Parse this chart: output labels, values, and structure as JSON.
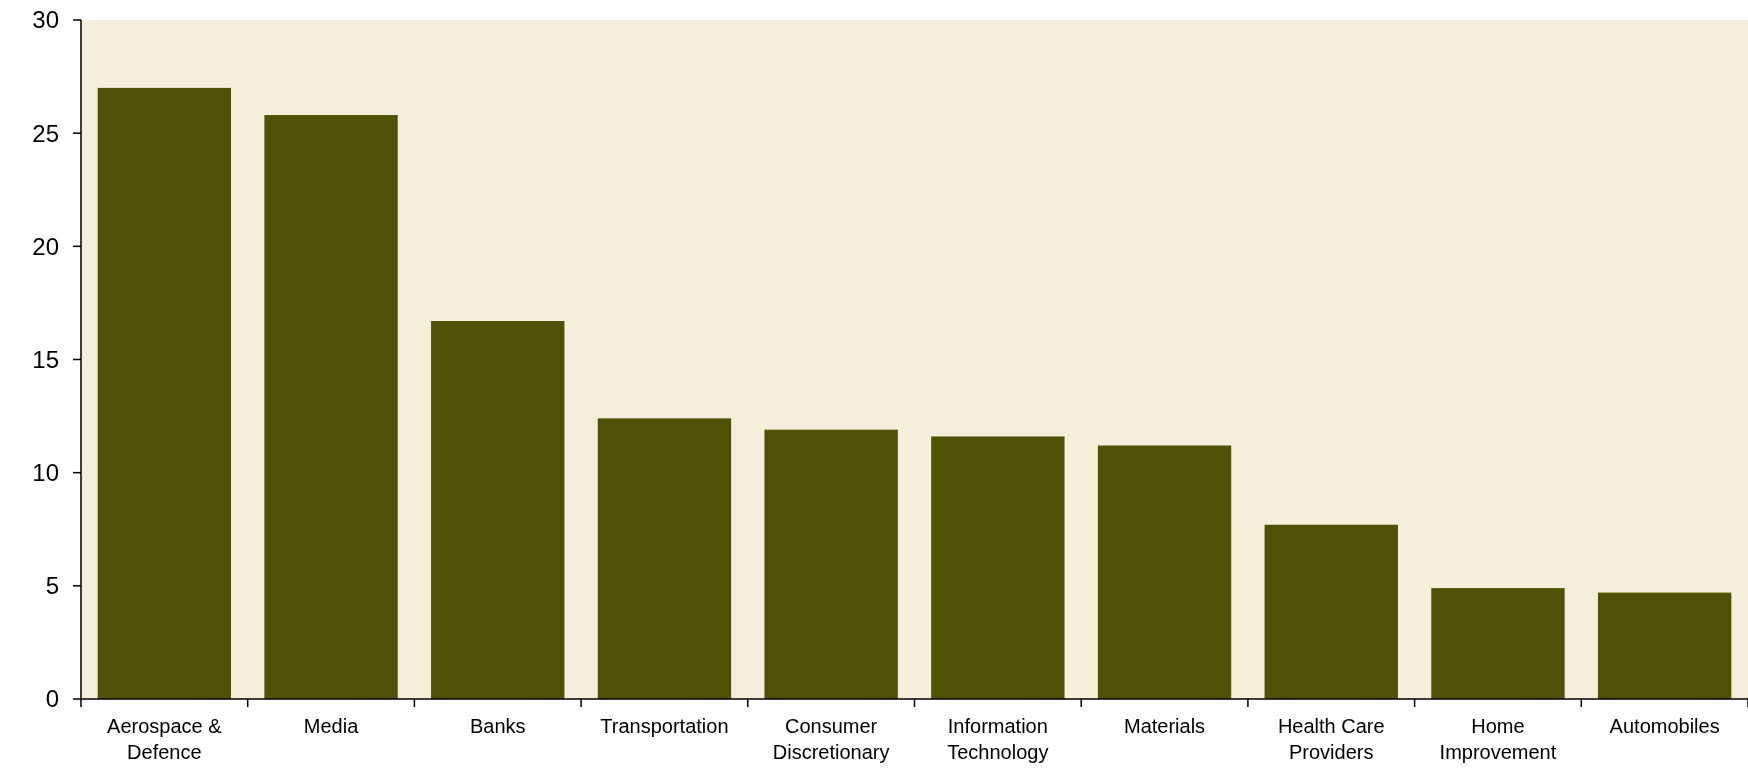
{
  "chart_data": {
    "type": "bar",
    "categories": [
      "Aerospace & Defence",
      "Media",
      "Banks",
      "Transportation",
      "Consumer Discretionary",
      "Information Technology",
      "Materials",
      "Health Care Providers",
      "Home Improvement",
      "Automobiles"
    ],
    "values": [
      27.0,
      25.8,
      16.7,
      12.4,
      11.9,
      11.6,
      11.2,
      7.7,
      4.9,
      4.7
    ],
    "color": "#4d5206",
    "ylim": [
      0,
      30
    ],
    "yticks": [
      0,
      5,
      10,
      15,
      20,
      25,
      30
    ],
    "grid": false
  }
}
